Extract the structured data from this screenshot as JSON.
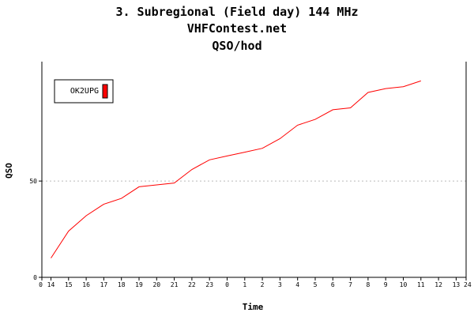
{
  "titles": [
    "3. Subregional (Field day) 144 MHz",
    "VHFContest.net",
    "QSO/hod"
  ],
  "chart_data": {
    "type": "line",
    "xlabel": "Time",
    "ylabel": "QSO",
    "x_tick_labels": [
      "0",
      "14",
      "15",
      "16",
      "17",
      "18",
      "19",
      "20",
      "21",
      "22",
      "23",
      "0",
      "1",
      "2",
      "3",
      "4",
      "5",
      "6",
      "7",
      "8",
      "9",
      "10",
      "11",
      "12",
      "13",
      "24"
    ],
    "y_tick_labels": [
      "0",
      "50"
    ],
    "ylim": [
      0,
      112
    ],
    "grid": "dashed horizontal line at 50",
    "legend": "top-left",
    "series": [
      {
        "name": "OK2UPG",
        "color": "#ff0000",
        "x": [
          "14",
          "15",
          "16",
          "17",
          "18",
          "19",
          "20",
          "21",
          "22",
          "23",
          "0",
          "1",
          "2",
          "3",
          "4",
          "5",
          "6",
          "7",
          "8",
          "9",
          "10",
          "11"
        ],
        "values": [
          10,
          24,
          32,
          38,
          41,
          47,
          48,
          49,
          56,
          61,
          63,
          65,
          67,
          72,
          79,
          82,
          87,
          88,
          96,
          98,
          99,
          102
        ]
      }
    ]
  }
}
